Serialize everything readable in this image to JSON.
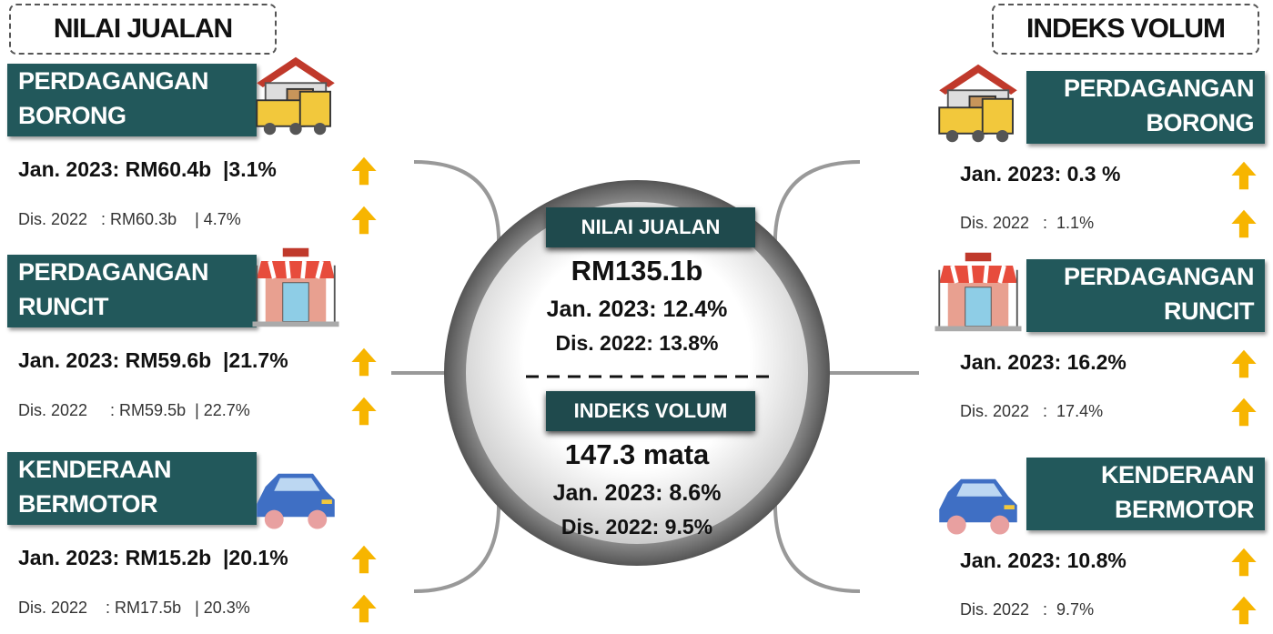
{
  "left": {
    "heading": "NILAI JUALAN",
    "items": [
      {
        "title": [
          "PERDAGANGAN",
          "BORONG"
        ],
        "current": "Jan. 2023: RM60.4b  |3.1%",
        "previous": "Dis. 2022   : RM60.3b    | 4.7%"
      },
      {
        "title": [
          "PERDAGANGAN",
          "RUNCIT"
        ],
        "current": "Jan. 2023: RM59.6b  |21.7%",
        "previous": "Dis. 2022     : RM59.5b  | 22.7%"
      },
      {
        "title": [
          "KENDERAAN",
          "BERMOTOR"
        ],
        "current": "Jan. 2023: RM15.2b  |20.1%",
        "previous": "Dis. 2022    : RM17.5b   | 20.3%"
      }
    ]
  },
  "right": {
    "heading": "INDEKS VOLUM",
    "items": [
      {
        "title": [
          "PERDAGANGAN",
          "BORONG"
        ],
        "current": "Jan. 2023: 0.3 %",
        "previous": "Dis. 2022   :  1.1%"
      },
      {
        "title": [
          "PERDAGANGAN",
          "RUNCIT"
        ],
        "current": "Jan. 2023: 16.2%",
        "previous": "Dis. 2022   :  17.4%"
      },
      {
        "title": [
          "KENDERAAN",
          "BERMOTOR"
        ],
        "current": "Jan. 2023: 10.8%",
        "previous": "Dis. 2022   :  9.7%"
      }
    ]
  },
  "center": {
    "sales": {
      "heading": "NILAI JUALAN",
      "total": "RM135.1b",
      "current": "Jan. 2023: 12.4%",
      "previous": "Dis. 2022: 13.8%"
    },
    "volume": {
      "heading": "INDEKS VOLUM",
      "total": "147.3 mata",
      "current": "Jan. 2023: 8.6%",
      "previous": "Dis. 2022: 9.5%"
    }
  }
}
